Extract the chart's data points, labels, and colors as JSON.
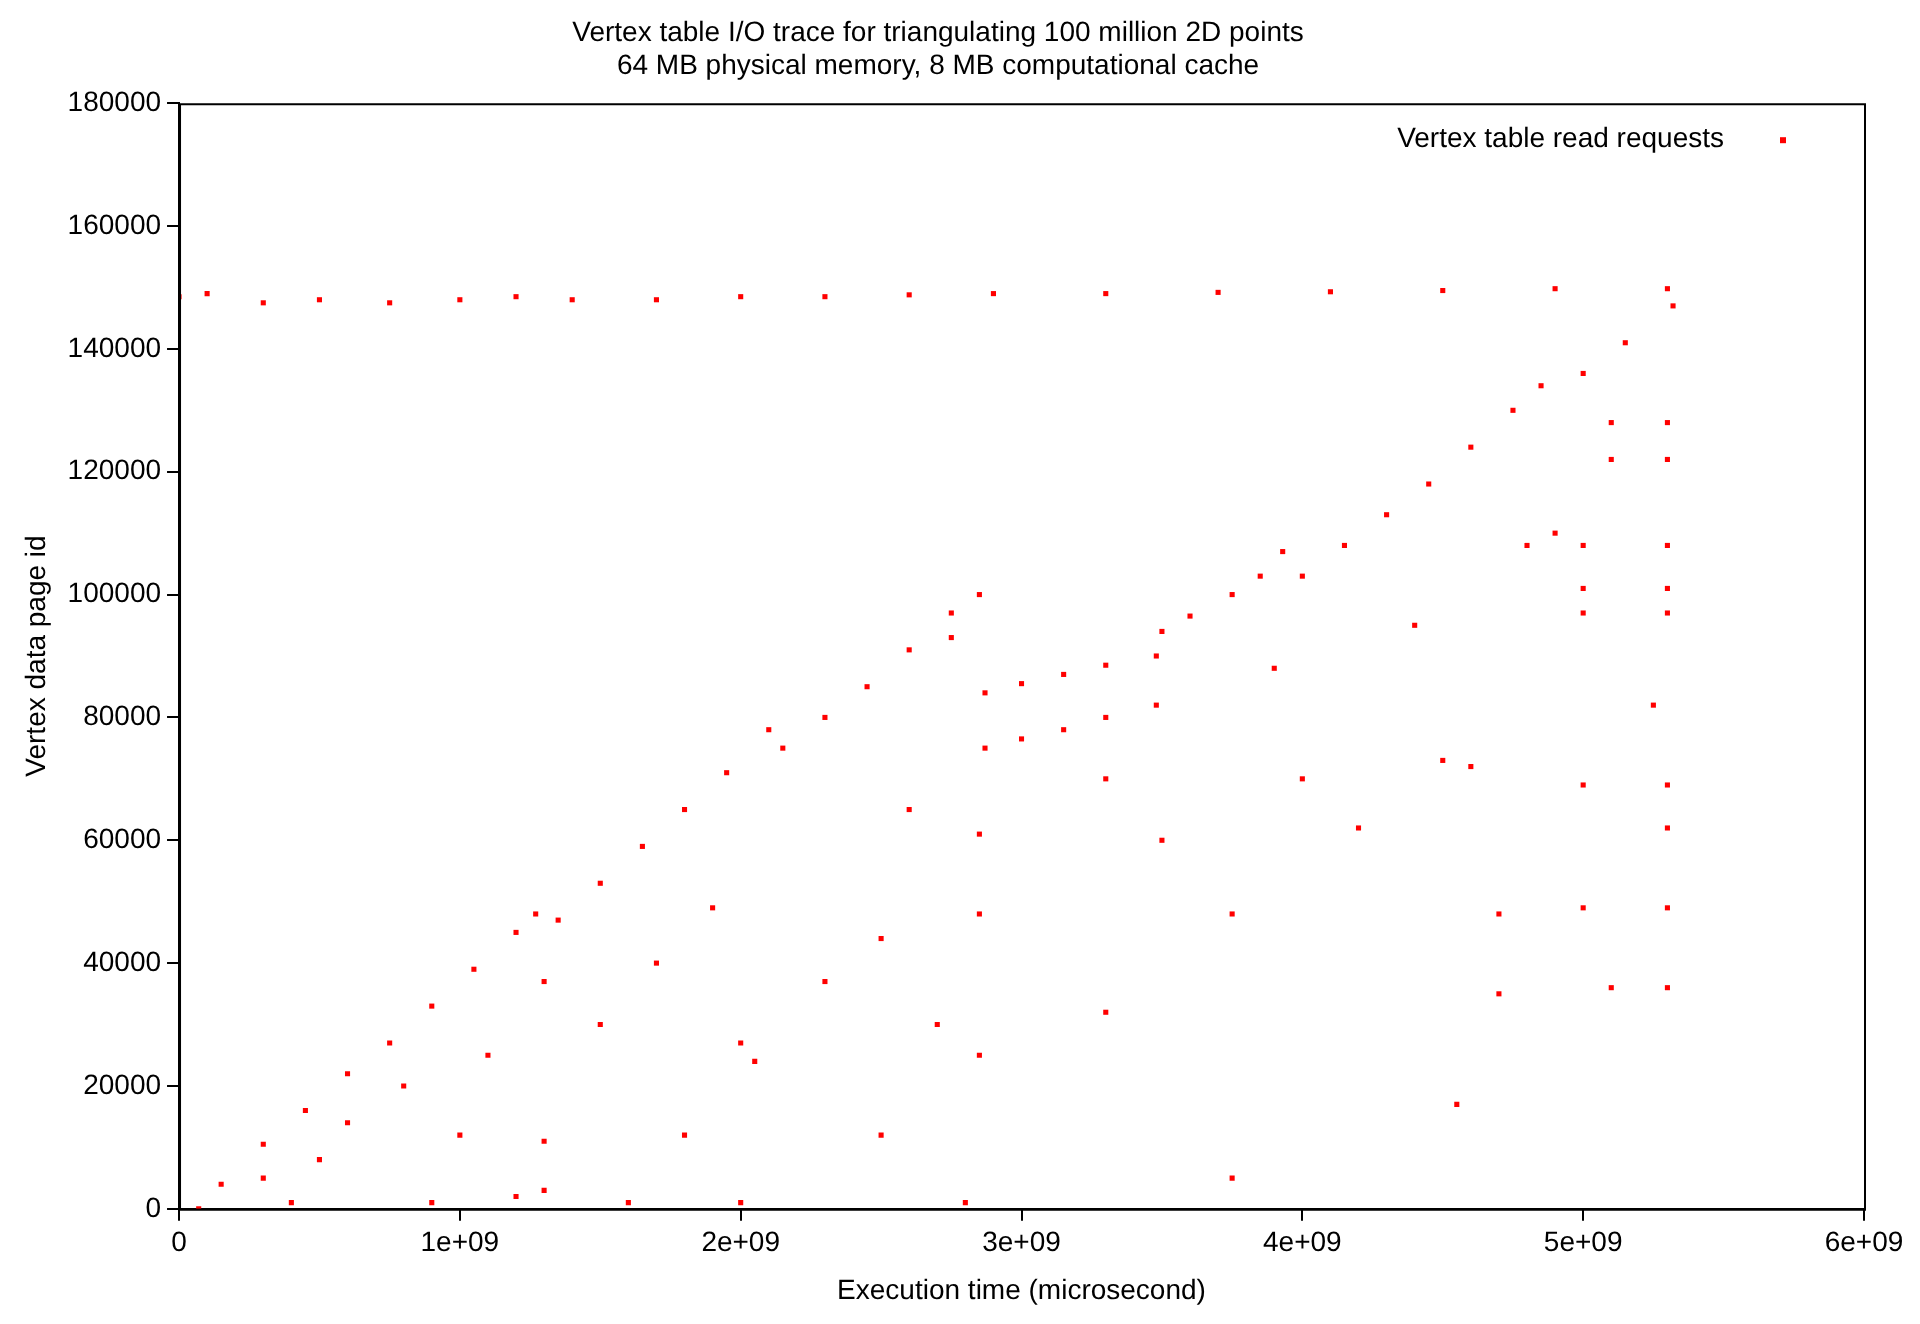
{
  "chart_data": {
    "type": "scatter",
    "title": "Vertex table I/O trace for triangulating 100 million 2D points",
    "subtitle": "64 MB physical memory, 8 MB computational cache",
    "xlabel": "Execution time (microsecond)",
    "ylabel": "Vertex data page id",
    "series": [
      {
        "name": "Vertex table read requests",
        "color": "#ff0000",
        "x": [
          0,
          100000000,
          300000000,
          500000000,
          750000000,
          1000000000,
          1200000000,
          1400000000,
          1700000000,
          2000000000,
          2300000000,
          2600000000,
          2900000000,
          3300000000,
          3700000000,
          4100000000,
          4500000000,
          4900000000,
          5300000000,
          70000000,
          150000000,
          300000000,
          450000000,
          600000000,
          750000000,
          900000000,
          1050000000,
          1200000000,
          1270000000,
          300000000,
          500000000,
          600000000,
          800000000,
          1000000000,
          1100000000,
          1300000000,
          1300000000,
          1300000000,
          400000000,
          900000000,
          1200000000,
          1350000000,
          1500000000,
          1650000000,
          1800000000,
          1950000000,
          2100000000,
          1500000000,
          1700000000,
          1900000000,
          2000000000,
          2050000000,
          1800000000,
          1600000000,
          2000000000,
          2150000000,
          2300000000,
          2450000000,
          2600000000,
          2750000000,
          2850000000,
          2300000000,
          2500000000,
          2600000000,
          2700000000,
          2750000000,
          2850000000,
          2850000000,
          2850000000,
          2500000000,
          2800000000,
          2870000000,
          3000000000,
          3150000000,
          3300000000,
          3480000000,
          2870000000,
          3000000000,
          3150000000,
          3300000000,
          3480000000,
          3300000000,
          3500000000,
          3300000000,
          3500000000,
          3600000000,
          3750000000,
          3850000000,
          3930000000,
          3750000000,
          3750000000,
          3900000000,
          4000000000,
          4150000000,
          4300000000,
          4450000000,
          4600000000,
          4750000000,
          4850000000,
          5000000000,
          5150000000,
          5320000000,
          4000000000,
          4200000000,
          4500000000,
          4600000000,
          4700000000,
          4800000000,
          4550000000,
          4900000000,
          4400000000,
          4700000000,
          5100000000,
          5300000000,
          5100000000,
          5300000000,
          5000000000,
          5300000000,
          5000000000,
          5300000000,
          5000000000,
          5300000000,
          5000000000,
          5300000000,
          5000000000,
          5300000000,
          5100000000,
          5300000000,
          5300000000,
          5250000000
        ],
        "values": [
          148500,
          149000,
          147500,
          148000,
          147500,
          148000,
          148500,
          148000,
          148000,
          148500,
          148500,
          148800,
          149000,
          149000,
          149200,
          149300,
          149500,
          149800,
          149800,
          0,
          4000,
          10500,
          16000,
          22000,
          27000,
          33000,
          39000,
          45000,
          48000,
          5000,
          8000,
          14000,
          20000,
          12000,
          25000,
          11000,
          3000,
          37000,
          1000,
          1000,
          2000,
          47000,
          53000,
          59000,
          65000,
          71000,
          78000,
          30000,
          40000,
          49000,
          27000,
          24000,
          12000,
          1000,
          1000,
          75000,
          80000,
          85000,
          91000,
          97000,
          100000,
          37000,
          44000,
          65000,
          30000,
          93000,
          61000,
          25000,
          48000,
          12000,
          1000,
          84000,
          85500,
          87000,
          88500,
          90000,
          75000,
          76500,
          78000,
          80000,
          82000,
          70000,
          60000,
          32000,
          94000,
          96500,
          100000,
          103000,
          107000,
          48000,
          5000,
          88000,
          103000,
          108000,
          113000,
          118000,
          124000,
          130000,
          134000,
          136000,
          141000,
          147000,
          70000,
          62000,
          73000,
          72000,
          48000,
          108000,
          17000,
          110000,
          95000,
          35000,
          128000,
          128000,
          122000,
          122000,
          108000,
          108000,
          101000,
          101000,
          97000,
          97000,
          69000,
          69000,
          49000,
          49000,
          36000,
          36000,
          62000,
          82000
        ]
      }
    ],
    "marker": "square",
    "legend": "top right",
    "grid": false,
    "xlim": [
      0,
      6000000000
    ],
    "xticks": [
      0,
      {
        "value": 1000000000,
        "label": "1e+09"
      },
      {
        "value": 2000000000,
        "label": "2e+09"
      },
      {
        "value": 3000000000,
        "label": "3e+09"
      },
      {
        "value": 4000000000,
        "label": "4e+09"
      },
      {
        "value": 5000000000,
        "label": "5e+09"
      },
      {
        "value": 6000000000,
        "label": "6e+09"
      }
    ],
    "ylim": [
      0,
      180000
    ],
    "yticks": [
      0,
      20000,
      40000,
      60000,
      80000,
      100000,
      120000,
      140000,
      160000,
      180000
    ]
  }
}
